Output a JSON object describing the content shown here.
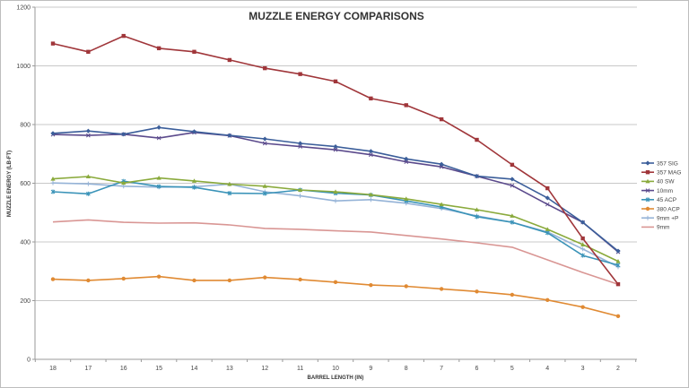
{
  "chart_data": {
    "type": "line",
    "title": "MUZZLE ENERGY COMPARISONS",
    "xlabel": "BARREL LENGTH (IN)",
    "ylabel": "MUZZLE ENERGY (LB-FT)",
    "ylim": [
      0,
      1200
    ],
    "yticks": [
      0,
      200,
      400,
      600,
      800,
      1000,
      1200
    ],
    "grid": true,
    "legend_position": "right",
    "categories": [
      "18",
      "17",
      "16",
      "15",
      "14",
      "13",
      "12",
      "11",
      "10",
      "9",
      "8",
      "7",
      "6",
      "5",
      "4",
      "3",
      "2"
    ],
    "series": [
      {
        "name": "357 SIG",
        "color": "#3b5e9a",
        "marker": "diamond",
        "values": [
          770,
          778,
          767,
          790,
          776,
          763,
          751,
          736,
          725,
          709,
          683,
          665,
          624,
          614,
          550,
          467,
          369
        ]
      },
      {
        "name": "357 MAG",
        "color": "#a0363a",
        "marker": "square",
        "values": [
          1076,
          1048,
          1102,
          1060,
          1048,
          1020,
          992,
          972,
          947,
          889,
          866,
          818,
          748,
          663,
          583,
          412,
          256
        ]
      },
      {
        "name": "40 SW",
        "color": "#8aaa3c",
        "marker": "triangle",
        "values": [
          615,
          623,
          601,
          618,
          608,
          597,
          590,
          577,
          571,
          561,
          547,
          528,
          510,
          489,
          443,
          391,
          334
        ]
      },
      {
        "name": "10mm",
        "color": "#5b4a8c",
        "marker": "x",
        "values": [
          766,
          763,
          767,
          754,
          773,
          762,
          736,
          725,
          714,
          697,
          673,
          656,
          624,
          592,
          528,
          467,
          366
        ]
      },
      {
        "name": "45 ACP",
        "color": "#3a93b8",
        "marker": "star",
        "values": [
          571,
          564,
          607,
          589,
          586,
          566,
          565,
          577,
          566,
          560,
          540,
          519,
          486,
          467,
          431,
          354,
          321
        ]
      },
      {
        "name": "380 ACP",
        "color": "#e08a33",
        "marker": "circle",
        "values": [
          273,
          269,
          275,
          282,
          269,
          269,
          279,
          272,
          263,
          253,
          249,
          240,
          231,
          220,
          202,
          178,
          147
        ]
      },
      {
        "name": "9mm +P",
        "color": "#95b3d7",
        "marker": "plus",
        "values": [
          601,
          598,
          590,
          587,
          588,
          597,
          571,
          557,
          540,
          544,
          532,
          514,
          489,
          467,
          434,
          376,
          315
        ]
      },
      {
        "name": "9mm",
        "color": "#d99694",
        "marker": "none",
        "values": [
          468,
          475,
          467,
          464,
          465,
          458,
          446,
          443,
          438,
          434,
          422,
          410,
          397,
          382,
          339,
          296,
          256
        ]
      }
    ]
  }
}
